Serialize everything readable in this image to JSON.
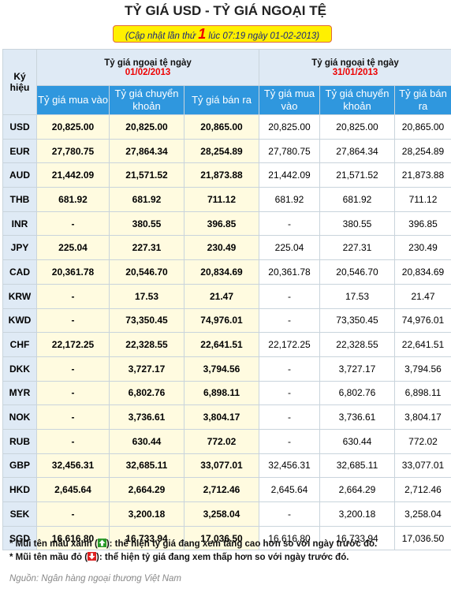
{
  "header": {
    "title": "TỶ GIÁ USD - TỶ GIÁ NGOẠI TỆ",
    "update_prefix": "(Cập nhật lần thứ ",
    "update_count": "1",
    "update_suffix": " lúc 07:19 ngày 01-02-2013)"
  },
  "table": {
    "code_header": "Ký hiệu",
    "groups": [
      {
        "label": "Tỷ giá ngoại tệ ngày",
        "date": "01/02/2013",
        "columns": [
          "Tỷ giá mua vào",
          "Tỷ giá chuyển khoản",
          "Tỷ giá bán ra"
        ]
      },
      {
        "label": "Tỷ giá ngoại tệ ngày",
        "date": "31/01/2013",
        "columns": [
          "Tỷ giá mua vào",
          "Tỷ giá chuyển khoản",
          "Tỷ giá bán ra"
        ]
      }
    ],
    "rows": [
      [
        "USD",
        "20,825.00",
        "20,825.00",
        "20,865.00",
        "20,825.00",
        "20,825.00",
        "20,865.00"
      ],
      [
        "EUR",
        "27,780.75",
        "27,864.34",
        "28,254.89",
        "27,780.75",
        "27,864.34",
        "28,254.89"
      ],
      [
        "AUD",
        "21,442.09",
        "21,571.52",
        "21,873.88",
        "21,442.09",
        "21,571.52",
        "21,873.88"
      ],
      [
        "THB",
        "681.92",
        "681.92",
        "711.12",
        "681.92",
        "681.92",
        "711.12"
      ],
      [
        "INR",
        "-",
        "380.55",
        "396.85",
        "-",
        "380.55",
        "396.85"
      ],
      [
        "JPY",
        "225.04",
        "227.31",
        "230.49",
        "225.04",
        "227.31",
        "230.49"
      ],
      [
        "CAD",
        "20,361.78",
        "20,546.70",
        "20,834.69",
        "20,361.78",
        "20,546.70",
        "20,834.69"
      ],
      [
        "KRW",
        "-",
        "17.53",
        "21.47",
        "-",
        "17.53",
        "21.47"
      ],
      [
        "KWD",
        "-",
        "73,350.45",
        "74,976.01",
        "-",
        "73,350.45",
        "74,976.01"
      ],
      [
        "CHF",
        "22,172.25",
        "22,328.55",
        "22,641.51",
        "22,172.25",
        "22,328.55",
        "22,641.51"
      ],
      [
        "DKK",
        "-",
        "3,727.17",
        "3,794.56",
        "-",
        "3,727.17",
        "3,794.56"
      ],
      [
        "MYR",
        "-",
        "6,802.76",
        "6,898.11",
        "-",
        "6,802.76",
        "6,898.11"
      ],
      [
        "NOK",
        "-",
        "3,736.61",
        "3,804.17",
        "-",
        "3,736.61",
        "3,804.17"
      ],
      [
        "RUB",
        "-",
        "630.44",
        "772.02",
        "-",
        "630.44",
        "772.02"
      ],
      [
        "GBP",
        "32,456.31",
        "32,685.11",
        "33,077.01",
        "32,456.31",
        "32,685.11",
        "33,077.01"
      ],
      [
        "HKD",
        "2,645.64",
        "2,664.29",
        "2,712.46",
        "2,645.64",
        "2,664.29",
        "2,712.46"
      ],
      [
        "SEK",
        "-",
        "3,200.18",
        "3,258.04",
        "-",
        "3,200.18",
        "3,258.04"
      ],
      [
        "SGD",
        "16,616.80",
        "16,733.94",
        "17,036.50",
        "16,616.80",
        "16,733.94",
        "17,036.50"
      ]
    ]
  },
  "notes": [
    {
      "before": "* Mũi tên mầu xanh (",
      "after": "): thể hiện tỷ giá đang xem tăng cao hơn so với ngày trước đó."
    },
    {
      "before": "* Mũi tên mầu đỏ (",
      "after": "): thể hiện tỷ giá đang xem thấp hơn so với ngày trước đó."
    }
  ],
  "source": "Nguồn: Ngân hàng ngoại thương Việt Nam"
}
